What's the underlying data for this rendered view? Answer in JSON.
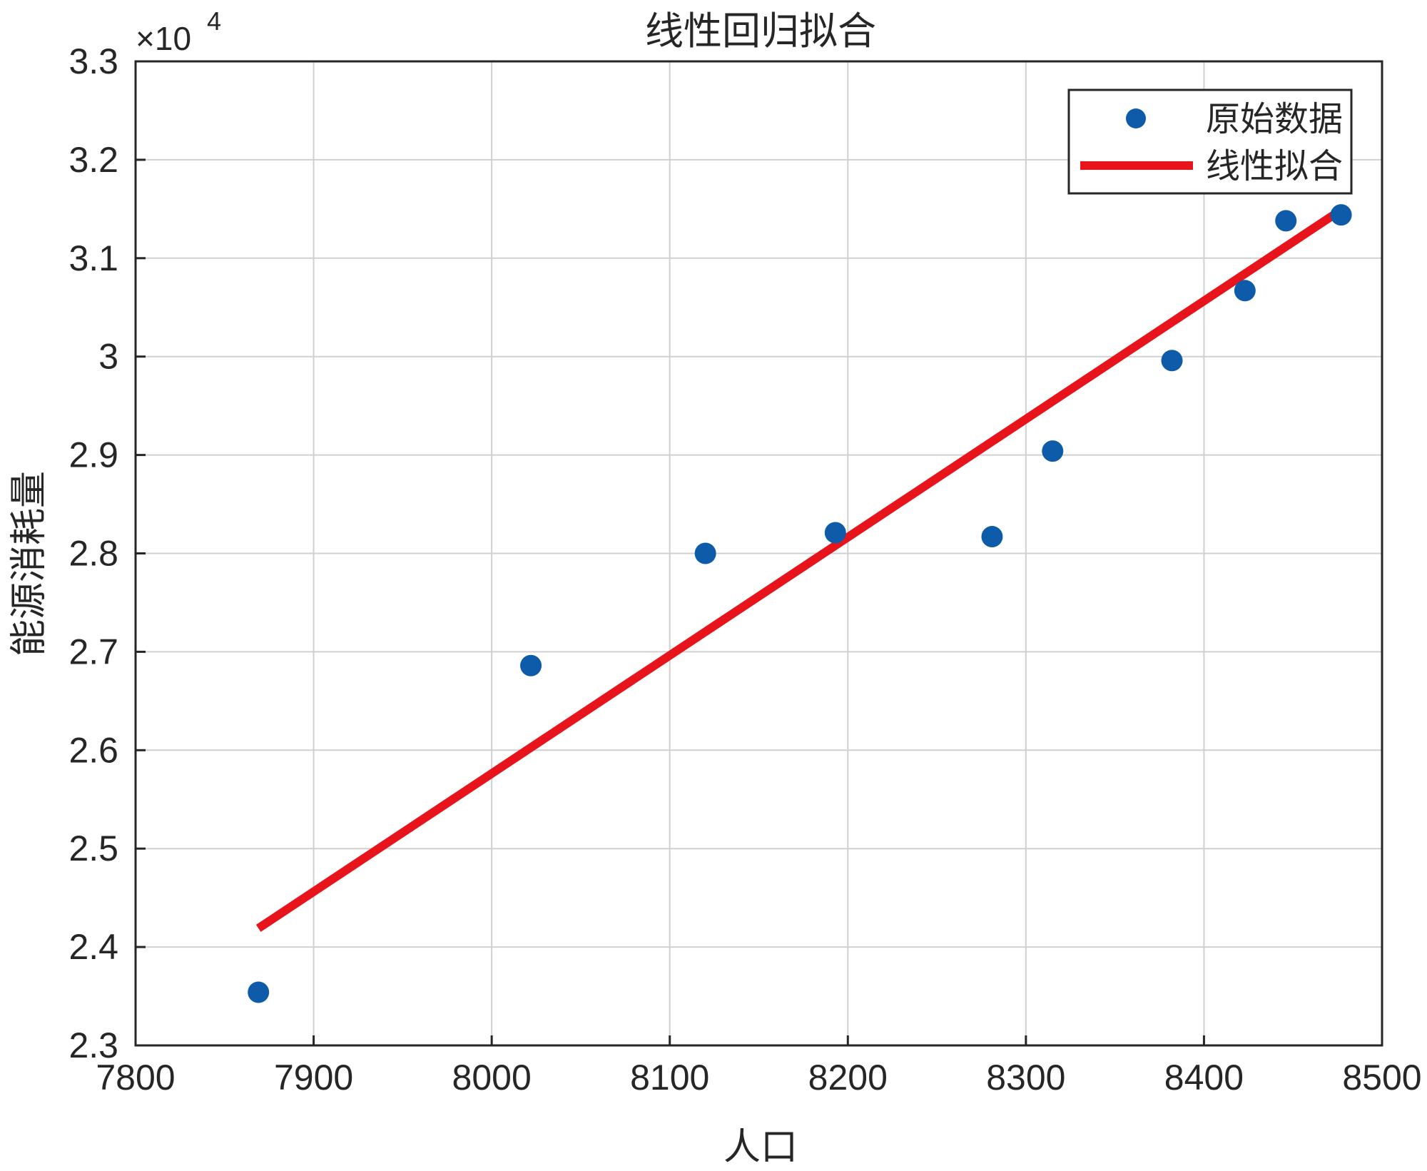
{
  "chart_data": {
    "type": "scatter",
    "title": "线性回归拟合",
    "xlabel": "人口",
    "ylabel": "能源消耗量",
    "y_multiplier_label": "×10",
    "y_multiplier_exponent": "4",
    "xlim": [
      7800,
      8500
    ],
    "ylim": [
      2.3,
      3.3
    ],
    "grid": true,
    "legend_position": "top-right",
    "x_ticks": [
      7800,
      7900,
      8000,
      8100,
      8200,
      8300,
      8400,
      8500
    ],
    "y_ticks": [
      2.3,
      2.4,
      2.5,
      2.6,
      2.7,
      2.8,
      2.9,
      3.0,
      3.1,
      3.2,
      3.3
    ],
    "x_tick_labels": [
      "7800",
      "7900",
      "8000",
      "8100",
      "8200",
      "8300",
      "8400",
      "8500"
    ],
    "y_tick_labels": [
      "2.3",
      "2.4",
      "2.5",
      "2.6",
      "2.7",
      "2.8",
      "2.9",
      "3",
      "3.1",
      "3.2",
      "3.3"
    ],
    "series": [
      {
        "name": "原始数据",
        "kind": "scatter",
        "color": "#0e5ba9",
        "x": [
          7869,
          8022,
          8120,
          8193,
          8281,
          8315,
          8382,
          8423,
          8446,
          8477
        ],
        "y": [
          2.354,
          2.686,
          2.8,
          2.821,
          2.817,
          2.904,
          2.996,
          3.067,
          3.138,
          3.144
        ]
      },
      {
        "name": "线性拟合",
        "kind": "line",
        "color": "#e8141b",
        "x": [
          7869,
          8477
        ],
        "y": [
          2.419,
          3.149
        ]
      }
    ]
  }
}
